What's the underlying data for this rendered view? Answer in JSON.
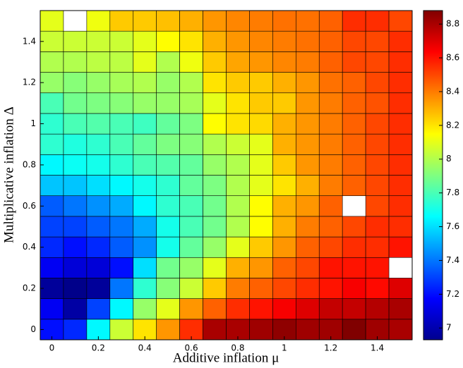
{
  "chart_data": {
    "type": "heatmap",
    "xlabel": "Additive inflation μ",
    "ylabel": "Multiplicative inflation Δ",
    "x": [
      0,
      0.1,
      0.2,
      0.3,
      0.4,
      0.5,
      0.6,
      0.7,
      0.8,
      0.9,
      1.0,
      1.1,
      1.2,
      1.3,
      1.4,
      1.5
    ],
    "y": [
      0,
      0.1,
      0.2,
      0.3,
      0.4,
      0.5,
      0.6,
      0.7,
      0.8,
      0.9,
      1.0,
      1.1,
      1.2,
      1.3,
      1.4,
      1.5
    ],
    "z": [
      [
        7.2,
        7.25,
        7.65,
        8.05,
        8.2,
        8.35,
        8.55,
        8.8,
        8.8,
        8.82,
        8.85,
        8.82,
        8.82,
        8.88,
        8.82,
        8.8
      ],
      [
        7.15,
        7.0,
        7.3,
        7.65,
        7.95,
        8.1,
        8.35,
        8.45,
        8.55,
        8.6,
        8.65,
        8.7,
        8.75,
        8.75,
        8.78,
        8.8
      ],
      [
        6.98,
        6.95,
        6.98,
        7.4,
        7.75,
        7.92,
        8.05,
        8.25,
        8.4,
        8.45,
        8.5,
        8.55,
        8.6,
        8.65,
        8.62,
        8.7
      ],
      [
        7.15,
        7.1,
        7.1,
        7.2,
        7.6,
        7.88,
        7.95,
        8.1,
        8.3,
        8.35,
        8.45,
        8.5,
        8.6,
        8.6,
        8.6,
        null
      ],
      [
        7.25,
        7.2,
        7.25,
        7.35,
        7.45,
        7.7,
        7.85,
        7.95,
        8.1,
        8.25,
        8.35,
        8.45,
        8.5,
        8.55,
        8.55,
        8.6
      ],
      [
        7.3,
        7.3,
        7.35,
        7.4,
        7.5,
        7.7,
        7.8,
        7.88,
        8.0,
        8.15,
        8.3,
        8.4,
        8.45,
        8.5,
        8.55,
        8.55
      ],
      [
        7.35,
        7.4,
        7.45,
        7.5,
        7.65,
        7.75,
        7.8,
        7.88,
        8.0,
        8.15,
        8.3,
        8.35,
        8.45,
        null,
        8.5,
        8.55
      ],
      [
        7.55,
        7.55,
        7.6,
        7.65,
        7.7,
        7.75,
        7.85,
        7.9,
        8.0,
        8.1,
        8.2,
        8.3,
        8.4,
        8.45,
        8.5,
        8.55
      ],
      [
        7.65,
        7.68,
        7.7,
        7.75,
        7.8,
        7.82,
        7.85,
        7.95,
        8.0,
        8.1,
        8.25,
        8.35,
        8.4,
        8.45,
        8.5,
        8.55
      ],
      [
        7.75,
        7.72,
        7.75,
        7.8,
        7.85,
        7.9,
        7.92,
        8.0,
        8.05,
        8.1,
        8.3,
        8.35,
        8.4,
        8.45,
        8.5,
        8.55
      ],
      [
        7.75,
        7.8,
        7.82,
        7.8,
        7.78,
        7.85,
        7.9,
        8.15,
        8.2,
        8.22,
        8.3,
        8.35,
        8.4,
        8.45,
        8.5,
        8.55
      ],
      [
        7.8,
        7.88,
        7.9,
        7.92,
        7.95,
        7.95,
        7.98,
        8.1,
        8.2,
        8.25,
        8.25,
        8.35,
        8.4,
        8.45,
        8.48,
        8.55
      ],
      [
        7.95,
        7.92,
        7.95,
        7.98,
        8.0,
        7.95,
        8.0,
        8.2,
        8.25,
        8.25,
        8.3,
        8.35,
        8.42,
        8.45,
        8.5,
        8.55
      ],
      [
        8.0,
        8.0,
        8.02,
        8.02,
        8.1,
        8.0,
        8.12,
        8.25,
        8.32,
        8.35,
        8.38,
        8.4,
        8.45,
        8.5,
        8.5,
        8.55
      ],
      [
        8.05,
        8.05,
        8.05,
        8.05,
        8.1,
        8.15,
        8.2,
        8.3,
        8.35,
        8.38,
        8.4,
        8.42,
        8.45,
        8.5,
        8.5,
        8.55
      ],
      [
        8.1,
        null,
        8.12,
        8.25,
        8.25,
        8.27,
        8.3,
        8.35,
        8.38,
        8.4,
        8.42,
        8.42,
        8.45,
        8.55,
        8.55,
        8.5
      ]
    ],
    "xlim": [
      -0.05,
      1.55
    ],
    "ylim": [
      -0.05,
      1.55
    ],
    "xticks": [
      0,
      0.2,
      0.4,
      0.6,
      0.8,
      1,
      1.2,
      1.4
    ],
    "yticks": [
      0,
      0.2,
      0.4,
      0.6,
      0.8,
      1,
      1.2,
      1.4
    ],
    "colormap": "jet",
    "clim": [
      6.93,
      8.88
    ],
    "cticks": [
      7,
      7.2,
      7.4,
      7.6,
      7.8,
      8,
      8.2,
      8.4,
      8.6,
      8.8
    ]
  }
}
